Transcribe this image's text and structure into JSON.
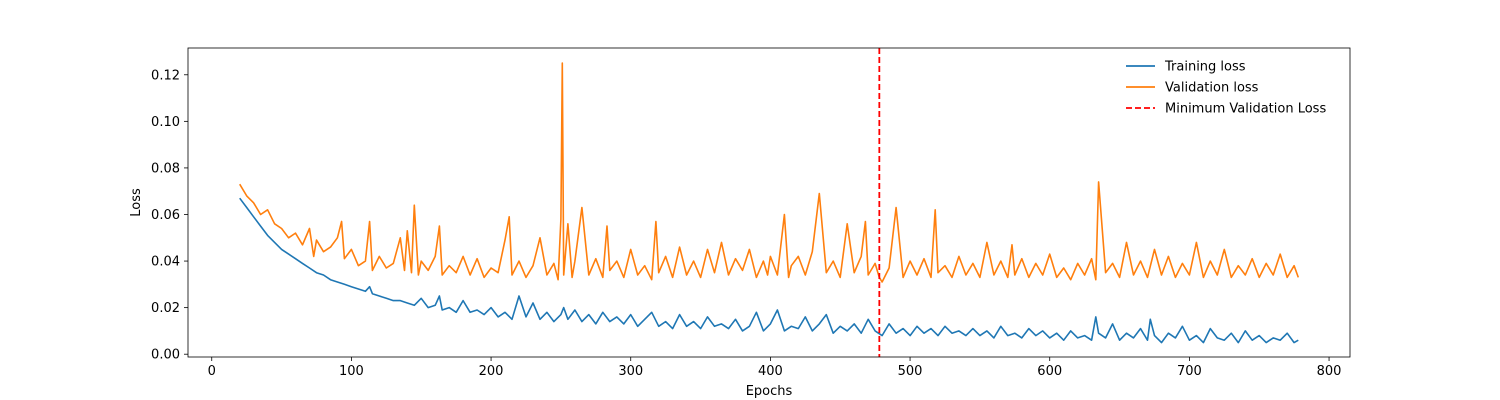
{
  "chart_data": {
    "type": "line",
    "title": "",
    "xlabel": "Epochs",
    "ylabel": "Loss",
    "xlim": [
      -17,
      815
    ],
    "ylim": [
      -0.0012,
      0.1315
    ],
    "x_ticks": [
      0,
      100,
      200,
      300,
      400,
      500,
      600,
      700,
      800
    ],
    "y_ticks": [
      0.0,
      0.02,
      0.04,
      0.06,
      0.08,
      0.1,
      0.12
    ],
    "y_tick_labels": [
      "0.00",
      "0.02",
      "0.04",
      "0.06",
      "0.08",
      "0.10",
      "0.12"
    ],
    "grid": false,
    "legend_position": "upper right",
    "series": [
      {
        "name": "Training loss",
        "color": "#1f77b4",
        "x": [
          20,
          25,
          30,
          35,
          40,
          45,
          50,
          55,
          60,
          65,
          70,
          75,
          80,
          85,
          90,
          95,
          100,
          105,
          110,
          113,
          115,
          120,
          125,
          130,
          135,
          140,
          145,
          150,
          155,
          160,
          163,
          165,
          170,
          175,
          180,
          185,
          190,
          195,
          200,
          205,
          210,
          215,
          220,
          225,
          230,
          235,
          240,
          245,
          250,
          252,
          255,
          260,
          265,
          270,
          275,
          280,
          285,
          290,
          295,
          300,
          305,
          310,
          315,
          320,
          325,
          330,
          335,
          340,
          345,
          350,
          355,
          360,
          365,
          370,
          375,
          380,
          385,
          390,
          395,
          400,
          405,
          410,
          415,
          420,
          425,
          430,
          435,
          440,
          445,
          450,
          455,
          460,
          465,
          470,
          475,
          480,
          485,
          490,
          495,
          500,
          505,
          510,
          515,
          520,
          525,
          530,
          535,
          540,
          545,
          550,
          555,
          560,
          565,
          570,
          575,
          580,
          585,
          590,
          595,
          600,
          605,
          610,
          615,
          620,
          625,
          630,
          633,
          635,
          640,
          645,
          650,
          655,
          660,
          665,
          670,
          672,
          675,
          680,
          685,
          690,
          695,
          700,
          705,
          710,
          715,
          720,
          725,
          730,
          735,
          740,
          745,
          750,
          755,
          760,
          765,
          770,
          775,
          778
        ],
        "y": [
          0.067,
          0.063,
          0.059,
          0.055,
          0.051,
          0.048,
          0.045,
          0.043,
          0.041,
          0.039,
          0.037,
          0.035,
          0.034,
          0.032,
          0.031,
          0.03,
          0.029,
          0.028,
          0.027,
          0.029,
          0.026,
          0.025,
          0.024,
          0.023,
          0.023,
          0.022,
          0.021,
          0.024,
          0.02,
          0.021,
          0.025,
          0.019,
          0.02,
          0.018,
          0.023,
          0.018,
          0.019,
          0.017,
          0.02,
          0.016,
          0.018,
          0.015,
          0.025,
          0.016,
          0.022,
          0.015,
          0.018,
          0.014,
          0.017,
          0.02,
          0.015,
          0.019,
          0.014,
          0.017,
          0.013,
          0.018,
          0.014,
          0.016,
          0.013,
          0.017,
          0.012,
          0.015,
          0.018,
          0.012,
          0.014,
          0.011,
          0.017,
          0.012,
          0.014,
          0.011,
          0.016,
          0.012,
          0.013,
          0.011,
          0.015,
          0.01,
          0.012,
          0.018,
          0.01,
          0.013,
          0.019,
          0.01,
          0.012,
          0.011,
          0.016,
          0.01,
          0.013,
          0.017,
          0.009,
          0.012,
          0.01,
          0.013,
          0.009,
          0.015,
          0.01,
          0.008,
          0.013,
          0.009,
          0.011,
          0.008,
          0.012,
          0.009,
          0.011,
          0.008,
          0.012,
          0.009,
          0.01,
          0.008,
          0.011,
          0.008,
          0.01,
          0.007,
          0.012,
          0.008,
          0.009,
          0.007,
          0.011,
          0.008,
          0.01,
          0.007,
          0.009,
          0.006,
          0.01,
          0.007,
          0.008,
          0.006,
          0.016,
          0.009,
          0.007,
          0.013,
          0.006,
          0.009,
          0.007,
          0.011,
          0.006,
          0.015,
          0.008,
          0.005,
          0.009,
          0.007,
          0.012,
          0.006,
          0.008,
          0.005,
          0.011,
          0.007,
          0.006,
          0.009,
          0.005,
          0.01,
          0.006,
          0.008,
          0.005,
          0.007,
          0.006,
          0.009,
          0.005,
          0.006
        ],
        "style": "solid"
      },
      {
        "name": "Validation loss",
        "color": "#ff7f0e",
        "x": [
          20,
          25,
          30,
          35,
          40,
          45,
          50,
          55,
          60,
          65,
          70,
          73,
          75,
          80,
          85,
          90,
          93,
          95,
          100,
          105,
          110,
          113,
          115,
          120,
          125,
          130,
          135,
          138,
          140,
          143,
          145,
          148,
          150,
          155,
          160,
          163,
          165,
          170,
          175,
          180,
          185,
          190,
          195,
          200,
          205,
          210,
          213,
          215,
          220,
          225,
          230,
          235,
          240,
          245,
          248,
          250,
          251,
          252,
          255,
          258,
          260,
          265,
          270,
          275,
          280,
          283,
          285,
          290,
          295,
          300,
          305,
          310,
          315,
          318,
          320,
          325,
          330,
          335,
          340,
          345,
          350,
          355,
          360,
          365,
          370,
          375,
          380,
          385,
          390,
          395,
          398,
          400,
          405,
          410,
          413,
          415,
          420,
          425,
          430,
          435,
          440,
          445,
          450,
          455,
          460,
          465,
          468,
          470,
          475,
          478,
          480,
          485,
          490,
          495,
          500,
          505,
          510,
          515,
          518,
          520,
          525,
          530,
          535,
          540,
          545,
          550,
          555,
          560,
          565,
          570,
          573,
          575,
          580,
          585,
          590,
          595,
          600,
          605,
          610,
          615,
          620,
          625,
          630,
          633,
          635,
          640,
          645,
          650,
          655,
          660,
          665,
          670,
          675,
          680,
          685,
          690,
          695,
          700,
          705,
          710,
          715,
          720,
          725,
          730,
          735,
          740,
          745,
          750,
          755,
          760,
          765,
          770,
          775,
          778
        ],
        "y": [
          0.073,
          0.068,
          0.065,
          0.06,
          0.062,
          0.056,
          0.054,
          0.05,
          0.052,
          0.047,
          0.054,
          0.042,
          0.049,
          0.044,
          0.046,
          0.05,
          0.057,
          0.041,
          0.045,
          0.038,
          0.04,
          0.057,
          0.036,
          0.042,
          0.037,
          0.039,
          0.05,
          0.036,
          0.053,
          0.035,
          0.064,
          0.034,
          0.04,
          0.036,
          0.042,
          0.055,
          0.034,
          0.038,
          0.035,
          0.042,
          0.034,
          0.041,
          0.033,
          0.037,
          0.035,
          0.049,
          0.059,
          0.034,
          0.04,
          0.033,
          0.038,
          0.05,
          0.034,
          0.039,
          0.032,
          0.058,
          0.125,
          0.034,
          0.056,
          0.033,
          0.04,
          0.063,
          0.034,
          0.041,
          0.033,
          0.055,
          0.036,
          0.04,
          0.033,
          0.045,
          0.034,
          0.038,
          0.032,
          0.057,
          0.035,
          0.042,
          0.033,
          0.046,
          0.034,
          0.04,
          0.033,
          0.045,
          0.035,
          0.048,
          0.034,
          0.041,
          0.036,
          0.045,
          0.033,
          0.04,
          0.034,
          0.042,
          0.034,
          0.06,
          0.033,
          0.038,
          0.042,
          0.034,
          0.044,
          0.069,
          0.035,
          0.04,
          0.033,
          0.056,
          0.035,
          0.042,
          0.057,
          0.034,
          0.039,
          0.033,
          0.031,
          0.037,
          0.063,
          0.033,
          0.04,
          0.034,
          0.041,
          0.033,
          0.062,
          0.035,
          0.038,
          0.033,
          0.042,
          0.034,
          0.039,
          0.033,
          0.048,
          0.034,
          0.04,
          0.033,
          0.047,
          0.034,
          0.041,
          0.033,
          0.039,
          0.034,
          0.043,
          0.033,
          0.037,
          0.032,
          0.039,
          0.034,
          0.041,
          0.032,
          0.074,
          0.035,
          0.039,
          0.033,
          0.048,
          0.034,
          0.04,
          0.033,
          0.045,
          0.034,
          0.042,
          0.033,
          0.039,
          0.034,
          0.048,
          0.033,
          0.04,
          0.034,
          0.045,
          0.033,
          0.038,
          0.034,
          0.041,
          0.033,
          0.039,
          0.034,
          0.043,
          0.033,
          0.038,
          0.033
        ],
        "style": "solid"
      }
    ],
    "reference_lines": [
      {
        "name": "Minimum Validation Loss",
        "orientation": "vertical",
        "x": 478,
        "color": "#ff0000",
        "style": "dashed"
      }
    ]
  }
}
